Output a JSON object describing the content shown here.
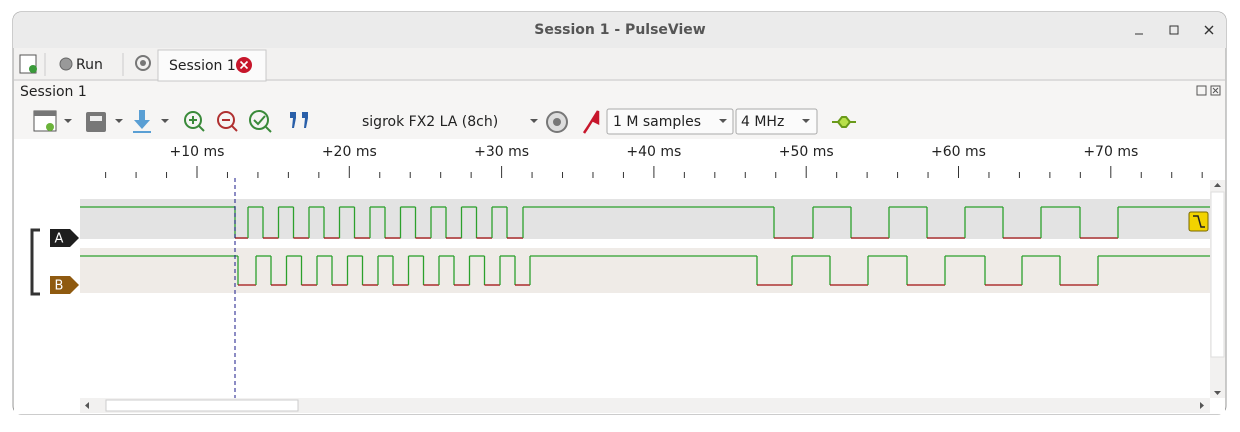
{
  "window": {
    "title": "Session 1 - PulseView"
  },
  "tabs": [
    {
      "label": "Run"
    },
    {
      "label": "Session 1"
    }
  ],
  "session": {
    "title": "Session 1"
  },
  "toolbar": {
    "device": "sigrok FX2 LA (8ch)",
    "samples": "1 M samples",
    "samplerate": "4 MHz"
  },
  "ruler": {
    "labels": [
      "+10 ms",
      "+20 ms",
      "+30 ms",
      "+40 ms",
      "+50 ms",
      "+60 ms",
      "+70 ms"
    ]
  },
  "channels": [
    {
      "label": "A"
    },
    {
      "label": "B"
    }
  ]
}
